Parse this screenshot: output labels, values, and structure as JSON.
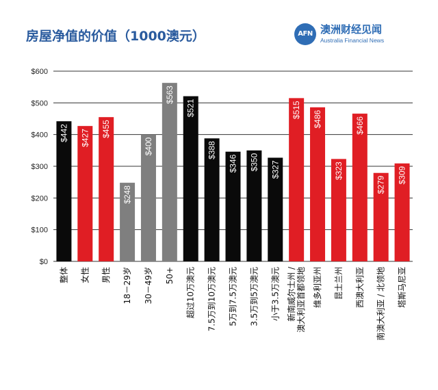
{
  "header": {
    "title": "房屋净值的价值（1000澳元）"
  },
  "logo": {
    "mark": "AFN",
    "name_cn": "澳洲财经见闻",
    "name_en": "Australia Financial News"
  },
  "colors": {
    "black": "#0a0a0a",
    "red": "#e01e24",
    "gray": "#7f7f7f",
    "grid": "#333333",
    "title": "#2a5b9e"
  },
  "chart_data": {
    "type": "bar",
    "title": "房屋净值的价值（1000澳元）",
    "xlabel": "",
    "ylabel": "",
    "ylim": [
      0,
      600
    ],
    "yticks": [
      0,
      100,
      200,
      300,
      400,
      500,
      600
    ],
    "ytick_labels": [
      "$0",
      "$100",
      "$200",
      "$300",
      "$400",
      "$500",
      "$600"
    ],
    "grid": true,
    "categories": [
      [
        "整体"
      ],
      [
        "女性"
      ],
      [
        "男性"
      ],
      [
        "18－29岁"
      ],
      [
        "30－49岁"
      ],
      [
        "50+"
      ],
      [
        "超过10万澳元"
      ],
      [
        "7.5万到10万澳元"
      ],
      [
        "5万到7.5万澳元"
      ],
      [
        "3.5万到5万澳元"
      ],
      [
        "小于3.5万澳元"
      ],
      [
        "新南威尔士州 /",
        "澳大利亚首都领地"
      ],
      [
        "维多利亚州"
      ],
      [
        "昆士兰州"
      ],
      [
        "西澳大利亚"
      ],
      [
        "南澳大利亚 / 北领地"
      ],
      [
        "塔斯马尼亚"
      ]
    ],
    "values": [
      442,
      427,
      455,
      248,
      400,
      563,
      521,
      388,
      346,
      350,
      327,
      515,
      486,
      323,
      466,
      279,
      309
    ],
    "value_labels": [
      "$442",
      "$427",
      "$455",
      "$248",
      "$400",
      "$563",
      "$521",
      "$388",
      "$346",
      "$350",
      "$327",
      "$515",
      "$486",
      "$323",
      "$466",
      "$279",
      "$309"
    ],
    "bar_colors": [
      "black",
      "red",
      "red",
      "gray",
      "gray",
      "gray",
      "black",
      "black",
      "black",
      "black",
      "black",
      "red",
      "red",
      "red",
      "red",
      "red",
      "red"
    ]
  }
}
